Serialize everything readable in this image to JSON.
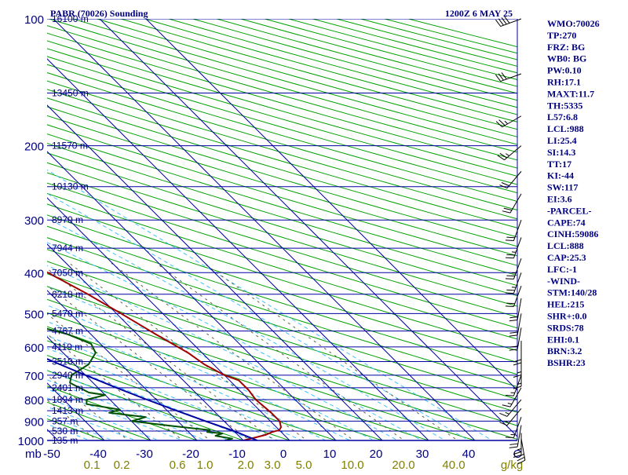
{
  "header": {
    "station": "PABR (70026) Sounding",
    "time": "1200Z  6 MAY 25"
  },
  "indices": [
    "WMO:70026",
    "TP:270",
    "FRZ: BG",
    "WB0: BG",
    "PW:0.10",
    "RH:17.1",
    "MAXT:11.7",
    "TH:5335",
    "L57:6.8",
    "LCL:988",
    "LI:25.4",
    "SI:14.3",
    "TT:17",
    "KI:-44",
    "SW:117",
    "EI:3.6",
    "-PARCEL-",
    "CAPE:74",
    "CINH:59086",
    "LCL:888",
    "CAP:25.3",
    "LFC:-1",
    "-WIND-",
    "STM:140/28",
    "HEL:215",
    "SHR+:0.0",
    "SRDS:78",
    "EHI:0.1",
    "BRN:3.2",
    "BSHR:23"
  ],
  "colors": {
    "isobar": "#0000a0",
    "isotherm": "#0000a0",
    "dry_adiabat": "#00a000",
    "moist_adiabat": "#40c0ff",
    "mixing_ratio": "#606040",
    "temperature": "#a00000",
    "dewpoint": "#005000",
    "parcel": "#0000a0",
    "wind_barb": "#000000",
    "label": "#000080",
    "mixing_label": "#808000"
  },
  "chart_data": {
    "type": "skew-t",
    "title": "PABR (70026) Sounding",
    "x_unit": "°C",
    "y_unit": "mb",
    "x_prefix_label": "mb",
    "pressure_levels": [
      100,
      200,
      300,
      400,
      500,
      600,
      700,
      800,
      900,
      1000
    ],
    "pressure_labels": [
      "100",
      "200",
      "300",
      "400",
      "500",
      "600",
      "700",
      "800",
      "900",
      "1000"
    ],
    "temperature_ticks": [
      -50,
      -40,
      -30,
      -20,
      -10,
      0,
      10,
      20,
      30,
      40
    ],
    "temperature_labels": [
      "-50",
      "-40",
      "-30",
      "-20",
      "-10",
      "0",
      "10",
      "20",
      "30",
      "40"
    ],
    "right_corner_label": "C",
    "mixing_ratio_labels": [
      "0.1",
      "0.2",
      "0.6",
      "1.0",
      "2.0",
      "3.0",
      "5.0",
      "10.0",
      "20.0",
      "40.0"
    ],
    "mixing_ratio_unit": "g/kg",
    "height_labels": [
      {
        "p": 100,
        "label": "16100 m"
      },
      {
        "p": 150,
        "label": "13450 m"
      },
      {
        "p": 200,
        "label": "11570 m"
      },
      {
        "p": 250,
        "label": "10130 m"
      },
      {
        "p": 300,
        "label": "8970 m"
      },
      {
        "p": 350,
        "label": "7944 m"
      },
      {
        "p": 400,
        "label": "7050 m"
      },
      {
        "p": 450,
        "label": "6218 m"
      },
      {
        "p": 500,
        "label": "5470 m"
      },
      {
        "p": 550,
        "label": "4767 m"
      },
      {
        "p": 600,
        "label": "4119 m"
      },
      {
        "p": 650,
        "label": "3510 m"
      },
      {
        "p": 700,
        "label": "2940 m"
      },
      {
        "p": 750,
        "label": "2401 m"
      },
      {
        "p": 800,
        "label": "1894 m"
      },
      {
        "p": 850,
        "label": "1413 m"
      },
      {
        "p": 900,
        "label": "957 m"
      },
      {
        "p": 950,
        "label": "530 m"
      },
      {
        "p": 1000,
        "label": "135 m"
      }
    ],
    "series": [
      {
        "key": "temperature",
        "points": [
          [
            1000,
            -10
          ],
          [
            985,
            -7
          ],
          [
            970,
            -4
          ],
          [
            955,
            -2
          ],
          [
            945,
            0
          ],
          [
            930,
            1
          ],
          [
            900,
            2
          ],
          [
            860,
            2
          ],
          [
            800,
            1.5
          ],
          [
            760,
            2
          ],
          [
            720,
            2
          ],
          [
            700,
            0
          ],
          [
            660,
            -2
          ],
          [
            620,
            -3
          ],
          [
            560,
            -6
          ],
          [
            500,
            -9
          ],
          [
            450,
            -12
          ],
          [
            400,
            -16
          ],
          [
            350,
            -21
          ],
          [
            310,
            -26
          ],
          [
            285,
            -30
          ],
          [
            270,
            -32
          ],
          [
            260,
            -35
          ],
          [
            250,
            -39
          ],
          [
            235,
            -42
          ],
          [
            210,
            -45
          ],
          [
            200,
            -47
          ],
          [
            170,
            -52
          ],
          [
            150,
            -56
          ],
          [
            120,
            -62
          ],
          [
            100,
            -66
          ]
        ]
      },
      {
        "key": "dewpoint",
        "points": [
          [
            1000,
            -14
          ],
          [
            990,
            -12
          ],
          [
            975,
            -15
          ],
          [
            962,
            -13
          ],
          [
            955,
            -16
          ],
          [
            945,
            -15
          ],
          [
            925,
            -22
          ],
          [
            900,
            -30
          ],
          [
            880,
            -26
          ],
          [
            860,
            -33
          ],
          [
            845,
            -30
          ],
          [
            820,
            -36
          ],
          [
            800,
            -35
          ],
          [
            780,
            -30
          ],
          [
            770,
            -33
          ],
          [
            730,
            -35
          ],
          [
            700,
            -33
          ],
          [
            660,
            -27
          ],
          [
            620,
            -23
          ],
          [
            590,
            -22
          ],
          [
            560,
            -25
          ],
          [
            540,
            -29
          ],
          [
            500,
            -31
          ],
          [
            470,
            -31
          ],
          [
            420,
            -32
          ],
          [
            400,
            -31
          ],
          [
            360,
            -36
          ],
          [
            330,
            -40
          ],
          [
            300,
            -43
          ],
          [
            280,
            -47
          ],
          [
            270,
            -46
          ],
          [
            260,
            -52
          ],
          [
            245,
            -58
          ],
          [
            220,
            -64
          ],
          [
            200,
            -66
          ],
          [
            170,
            -68
          ],
          [
            150,
            -70
          ],
          [
            120,
            -74
          ],
          [
            100,
            -78
          ]
        ]
      },
      {
        "key": "parcel",
        "points": [
          [
            1000,
            -7
          ],
          [
            950,
            -10
          ],
          [
            900,
            -14
          ],
          [
            850,
            -18
          ],
          [
            800,
            -22
          ],
          [
            750,
            -26
          ],
          [
            700,
            -30
          ],
          [
            650,
            -34
          ],
          [
            600,
            -38.5
          ],
          [
            550,
            -43
          ],
          [
            500,
            -48
          ],
          [
            450,
            -53
          ],
          [
            400,
            -58
          ],
          [
            350,
            -63
          ],
          [
            300,
            -68
          ],
          [
            250,
            -74
          ],
          [
            200,
            -80
          ],
          [
            150,
            -86
          ],
          [
            120,
            -91
          ]
        ]
      }
    ],
    "winds": [
      {
        "p": 100,
        "dir": 250,
        "spd": 40
      },
      {
        "p": 135,
        "dir": 250,
        "spd": 30
      },
      {
        "p": 170,
        "dir": 240,
        "spd": 25
      },
      {
        "p": 200,
        "dir": 230,
        "spd": 25
      },
      {
        "p": 230,
        "dir": 220,
        "spd": 20
      },
      {
        "p": 260,
        "dir": 210,
        "spd": 20
      },
      {
        "p": 300,
        "dir": 200,
        "spd": 20
      },
      {
        "p": 330,
        "dir": 200,
        "spd": 25
      },
      {
        "p": 370,
        "dir": 200,
        "spd": 25
      },
      {
        "p": 400,
        "dir": 200,
        "spd": 25
      },
      {
        "p": 430,
        "dir": 200,
        "spd": 20
      },
      {
        "p": 460,
        "dir": 190,
        "spd": 20
      },
      {
        "p": 500,
        "dir": 190,
        "spd": 20
      },
      {
        "p": 540,
        "dir": 190,
        "spd": 20
      },
      {
        "p": 580,
        "dir": 180,
        "spd": 20
      },
      {
        "p": 620,
        "dir": 180,
        "spd": 15
      },
      {
        "p": 660,
        "dir": 180,
        "spd": 15
      },
      {
        "p": 700,
        "dir": 200,
        "spd": 15
      },
      {
        "p": 750,
        "dir": 210,
        "spd": 15
      },
      {
        "p": 800,
        "dir": 220,
        "spd": 15
      },
      {
        "p": 840,
        "dir": 220,
        "spd": 15
      },
      {
        "p": 880,
        "dir": 200,
        "spd": 15
      },
      {
        "p": 920,
        "dir": 190,
        "spd": 20
      },
      {
        "p": 960,
        "dir": 180,
        "spd": 25
      },
      {
        "p": 990,
        "dir": 170,
        "spd": 25
      }
    ]
  }
}
